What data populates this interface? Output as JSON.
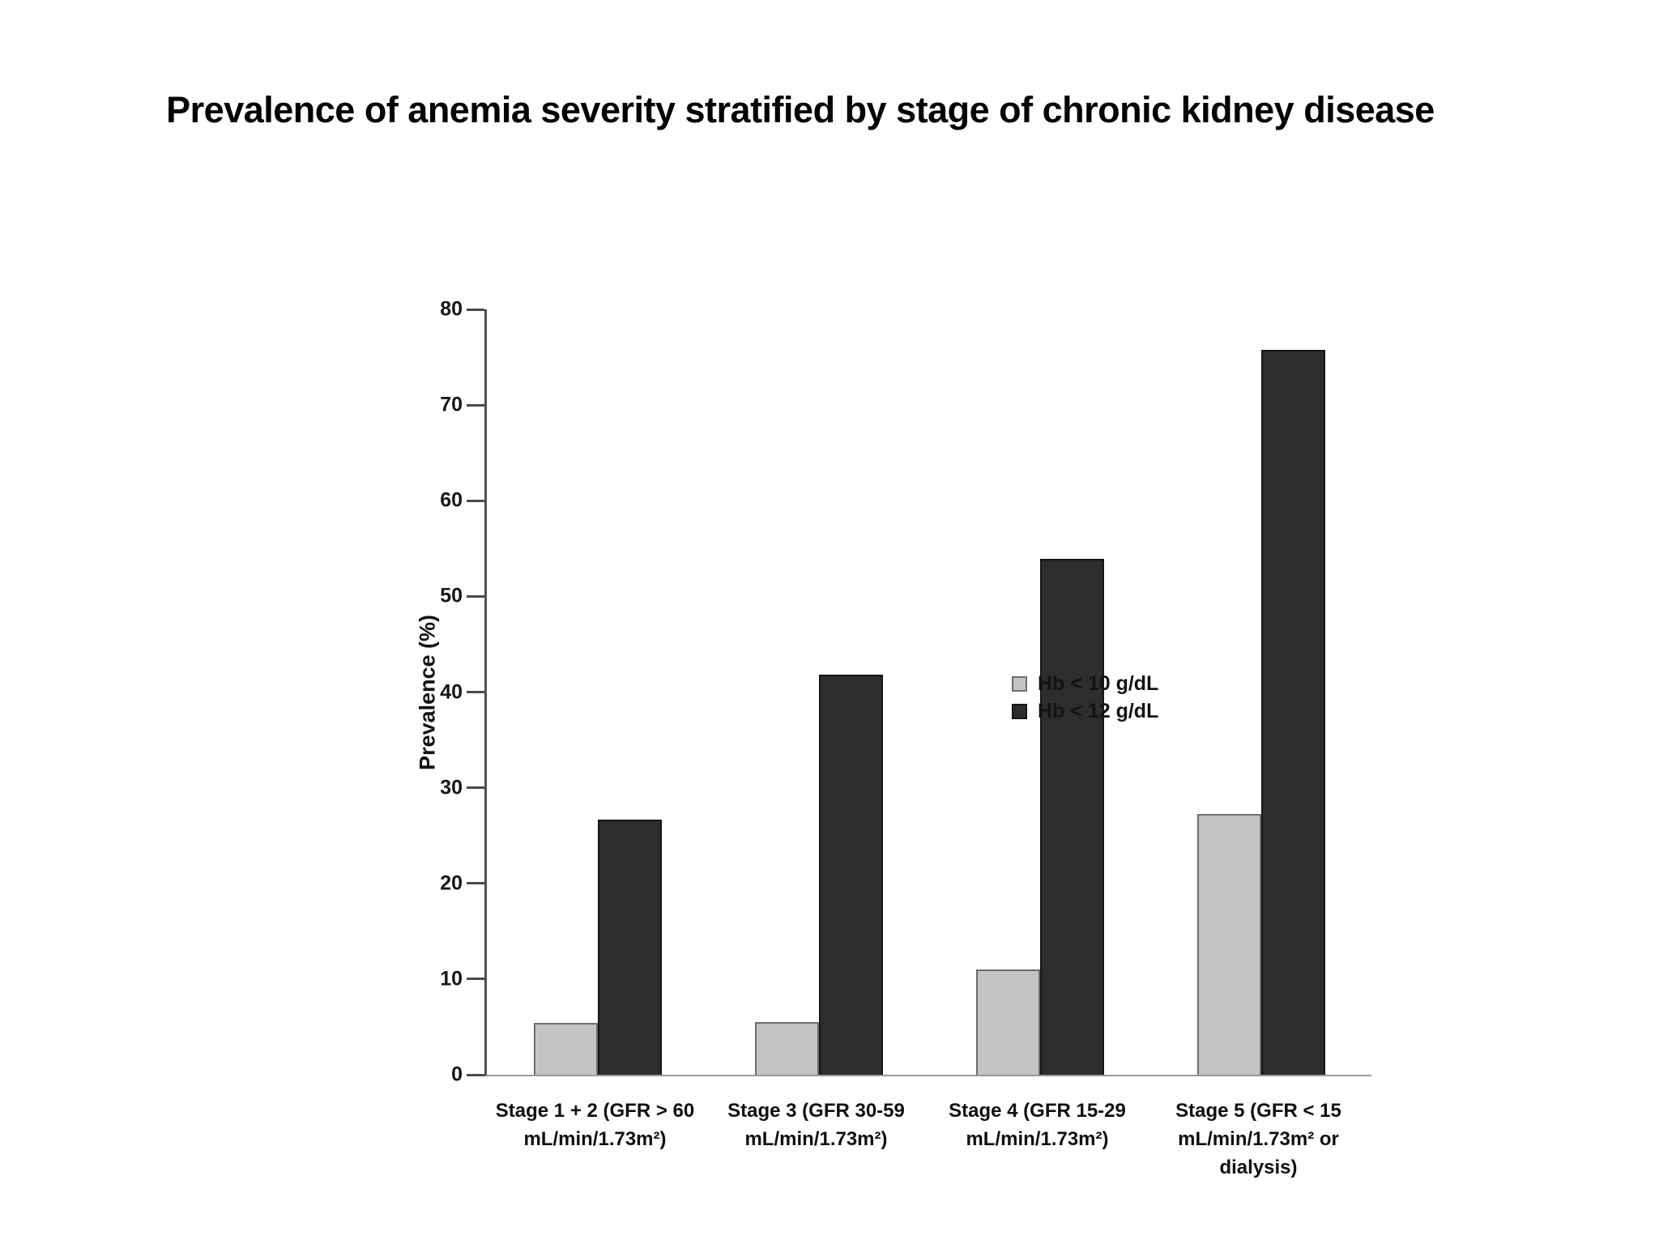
{
  "title": "Prevalence of anemia severity stratified by stage of  chronic kidney disease",
  "chart_data": {
    "type": "bar",
    "title": "Prevalence of anemia severity stratified by stage of chronic kidney disease",
    "xlabel": "",
    "ylabel": "Prevalence (%)",
    "ylim": [
      0,
      80
    ],
    "yticks": [
      "0",
      "10",
      "20",
      "30",
      "40",
      "50",
      "60",
      "70",
      "80"
    ],
    "grid": false,
    "legend_position": "upper-left-inside",
    "categories": [
      "Stage 1 + 2 (GFR > 60\nmL/min/1.73m²)",
      "Stage 3 (GFR 30-59\nmL/min/1.73m²)",
      "Stage 4 (GFR 15-29\nmL/min/1.73m²)",
      "Stage 5 (GFR < 15\nmL/min/1.73m² or\ndialysis)"
    ],
    "series": [
      {
        "name": "Hb < 10 g/dL",
        "values": [
          5.4,
          5.5,
          11.0,
          27.3
        ],
        "fill": "#c4c4c6",
        "border": "#6e6e6e"
      },
      {
        "name": "Hb < 12 g/dL",
        "values": [
          26.7,
          41.8,
          53.9,
          75.8
        ],
        "fill": "#2d2d2f",
        "border": "#161618"
      }
    ],
    "colors": {
      "axis": "#4f4f4f",
      "baseline": "#9a9a9a",
      "text": "#111111",
      "background": "#ffffff"
    }
  }
}
